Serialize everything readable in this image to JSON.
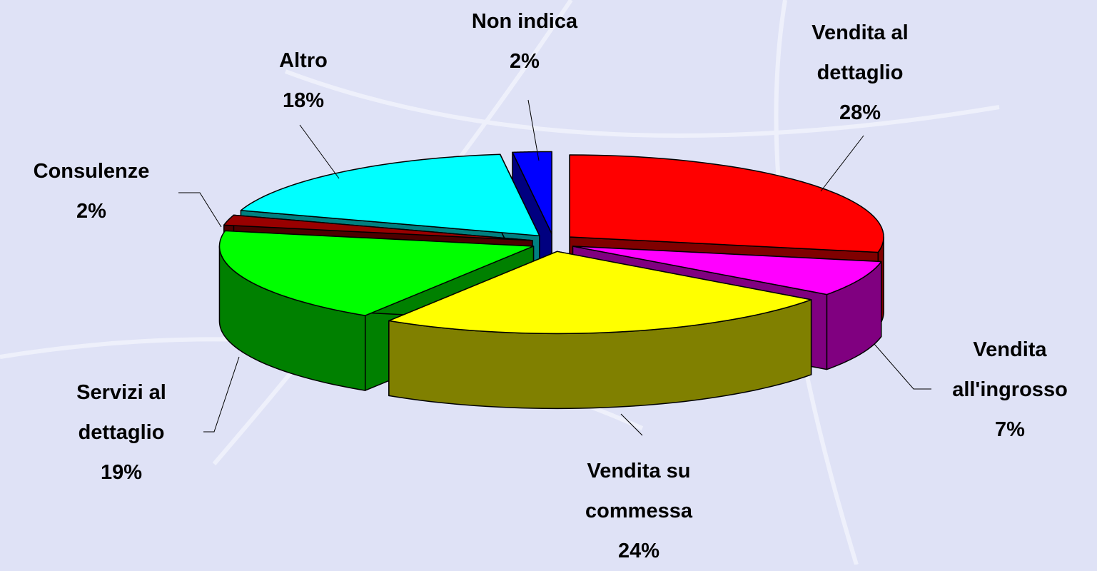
{
  "chart_data": {
    "type": "pie",
    "categories": [
      "Vendita al dettaglio",
      "Vendita all'ingrosso",
      "Vendita su commessa",
      "Servizi al dettaglio",
      "Consulenze",
      "Altro",
      "Non indica"
    ],
    "values": [
      28,
      7,
      24,
      19,
      2,
      18,
      2
    ],
    "value_labels": [
      "28%",
      "7%",
      "24%",
      "19%",
      "2%",
      "18%",
      "2%"
    ],
    "colors": [
      "#ff0000",
      "#ff00ff",
      "#ffff00",
      "#00ff00",
      "#990000",
      "#00ffff",
      "#0000ff"
    ]
  }
}
